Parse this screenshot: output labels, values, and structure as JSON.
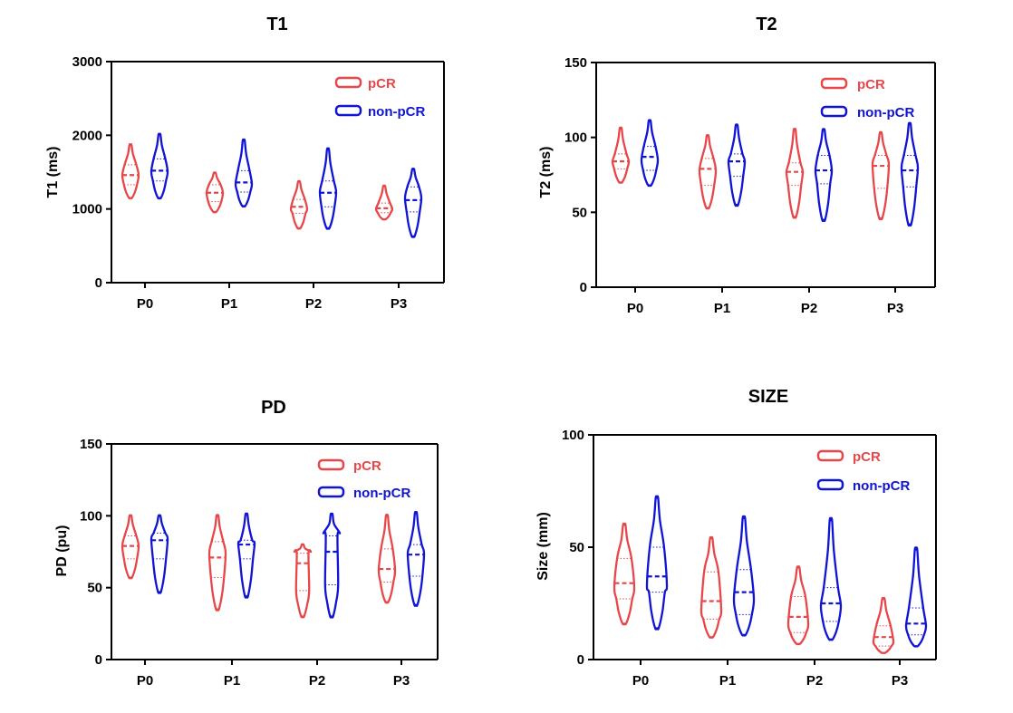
{
  "colors": {
    "pCR": "#e8474a",
    "non-pCR": "#1014d4",
    "axis": "#000000"
  },
  "chart_data": [
    {
      "type": "violin",
      "title": "T1",
      "ylabel": "T1 (ms)",
      "xlabel": "",
      "ylim": [
        0,
        3000
      ],
      "yticks": [
        0,
        1000,
        2000,
        3000
      ],
      "categories": [
        "P0",
        "P1",
        "P2",
        "P3"
      ],
      "legend": [
        "pCR",
        "non-pCR"
      ],
      "legend_position": "top-right",
      "series": [
        {
          "name": "pCR",
          "groups": [
            {
              "min": 1150,
              "max": 1870,
              "q1": 1330,
              "median": 1460,
              "q3": 1600,
              "mode": 1460
            },
            {
              "min": 960,
              "max": 1490,
              "q1": 1100,
              "median": 1220,
              "q3": 1330,
              "mode": 1220
            },
            {
              "min": 740,
              "max": 1370,
              "q1": 940,
              "median": 1030,
              "q3": 1130,
              "mode": 1000
            },
            {
              "min": 860,
              "max": 1310,
              "q1": 950,
              "median": 1010,
              "q3": 1080,
              "mode": 1000
            }
          ]
        },
        {
          "name": "non-pCR",
          "groups": [
            {
              "min": 1150,
              "max": 2010,
              "q1": 1380,
              "median": 1520,
              "q3": 1680,
              "mode": 1510
            },
            {
              "min": 1040,
              "max": 1930,
              "q1": 1230,
              "median": 1360,
              "q3": 1520,
              "mode": 1340
            },
            {
              "min": 740,
              "max": 1810,
              "q1": 1030,
              "median": 1220,
              "q3": 1380,
              "mode": 1230
            },
            {
              "min": 630,
              "max": 1540,
              "q1": 960,
              "median": 1120,
              "q3": 1300,
              "mode": 1150
            }
          ]
        }
      ]
    },
    {
      "type": "violin",
      "title": "T2",
      "ylabel": "T2 (ms)",
      "xlabel": "",
      "ylim": [
        0,
        150
      ],
      "yticks": [
        0,
        50,
        100,
        150
      ],
      "categories": [
        "P0",
        "P1",
        "P2",
        "P3"
      ],
      "legend": [
        "pCR",
        "non-pCR"
      ],
      "legend_position": "top-right",
      "series": [
        {
          "name": "pCR",
          "groups": [
            {
              "min": 70,
              "max": 106,
              "q1": 79,
              "median": 84,
              "q3": 89,
              "mode": 84
            },
            {
              "min": 53,
              "max": 101,
              "q1": 68,
              "median": 79,
              "q3": 86,
              "mode": 78
            },
            {
              "min": 47,
              "max": 105,
              "q1": 68,
              "median": 77,
              "q3": 83,
              "mode": 77
            },
            {
              "min": 46,
              "max": 103,
              "q1": 66,
              "median": 81,
              "q3": 88,
              "mode": 82
            }
          ]
        },
        {
          "name": "non-pCR",
          "groups": [
            {
              "min": 68,
              "max": 111,
              "q1": 78,
              "median": 87,
              "q3": 94,
              "mode": 85
            },
            {
              "min": 55,
              "max": 108,
              "q1": 74,
              "median": 84,
              "q3": 89,
              "mode": 84
            },
            {
              "min": 45,
              "max": 105,
              "q1": 69,
              "median": 78,
              "q3": 88,
              "mode": 78
            },
            {
              "min": 42,
              "max": 109,
              "q1": 67,
              "median": 78,
              "q3": 88,
              "mode": 80
            }
          ]
        }
      ]
    },
    {
      "type": "violin",
      "title": "PD",
      "ylabel": "PD (pu)",
      "xlabel": "",
      "ylim": [
        0,
        150
      ],
      "yticks": [
        0,
        50,
        100,
        150
      ],
      "categories": [
        "P0",
        "P1",
        "P2",
        "P3"
      ],
      "legend": [
        "pCR",
        "non-pCR"
      ],
      "legend_position": "top-right",
      "series": [
        {
          "name": "pCR",
          "groups": [
            {
              "min": 57,
              "max": 100,
              "q1": 70,
              "median": 79,
              "q3": 86,
              "mode": 79
            },
            {
              "min": 35,
              "max": 100,
              "q1": 57,
              "median": 71,
              "q3": 82,
              "mode": 74
            },
            {
              "min": 30,
              "max": 80,
              "q1": 48,
              "median": 67,
              "q3": 74,
              "mode": 75
            },
            {
              "min": 40,
              "max": 100,
              "q1": 54,
              "median": 63,
              "q3": 77,
              "mode": 62
            }
          ]
        },
        {
          "name": "non-pCR",
          "groups": [
            {
              "min": 47,
              "max": 100,
              "q1": 70,
              "median": 83,
              "q3": 88,
              "mode": 84
            },
            {
              "min": 44,
              "max": 101,
              "q1": 70,
              "median": 80,
              "q3": 83,
              "mode": 81
            },
            {
              "min": 30,
              "max": 101,
              "q1": 52,
              "median": 75,
              "q3": 86,
              "mode": 88
            },
            {
              "min": 38,
              "max": 102,
              "q1": 58,
              "median": 73,
              "q3": 80,
              "mode": 74
            }
          ]
        }
      ]
    },
    {
      "type": "violin",
      "title": "SIZE",
      "ylabel": "Size (mm)",
      "xlabel": "",
      "ylim": [
        0,
        100
      ],
      "yticks": [
        0,
        50,
        100
      ],
      "categories": [
        "P0",
        "P1",
        "P2",
        "P3"
      ],
      "legend": [
        "pCR",
        "non-pCR"
      ],
      "legend_position": "top-right",
      "series": [
        {
          "name": "pCR",
          "groups": [
            {
              "min": 16,
              "max": 60,
              "q1": 27,
              "median": 34,
              "q3": 45,
              "mode": 32
            },
            {
              "min": 10,
              "max": 54,
              "q1": 18,
              "median": 26,
              "q3": 39,
              "mode": 22
            },
            {
              "min": 7,
              "max": 41,
              "q1": 12,
              "median": 19,
              "q3": 28,
              "mode": 16
            },
            {
              "min": 3,
              "max": 27,
              "q1": 6,
              "median": 10,
              "q3": 15,
              "mode": 8
            }
          ]
        },
        {
          "name": "non-pCR",
          "groups": [
            {
              "min": 14,
              "max": 72,
              "q1": 30,
              "median": 37,
              "q3": 50,
              "mode": 33
            },
            {
              "min": 11,
              "max": 63,
              "q1": 20,
              "median": 30,
              "q3": 40,
              "mode": 27
            },
            {
              "min": 9,
              "max": 62,
              "q1": 17,
              "median": 25,
              "q3": 32,
              "mode": 24
            },
            {
              "min": 6,
              "max": 49,
              "q1": 11,
              "median": 16,
              "q3": 23,
              "mode": 15
            }
          ]
        }
      ]
    }
  ]
}
